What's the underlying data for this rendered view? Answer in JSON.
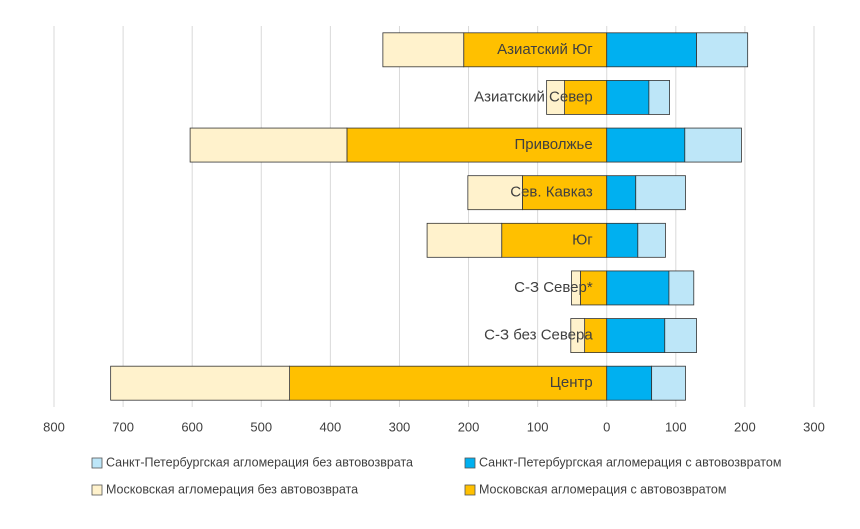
{
  "chart_data": {
    "type": "diverging_stacked_bar",
    "categories": [
      "Азиатский Юг",
      "Азиатский Север",
      "Приволжье",
      "Сев. Кавказ",
      "Юг",
      "С-З Север*",
      "С-З без Севера",
      "Центр"
    ],
    "series": [
      {
        "name": "Санкт-Петербургская агломерация без автовозврата",
        "color": "#bde6f8",
        "values": [
          74,
          30,
          82,
          72,
          40,
          36,
          46,
          49
        ]
      },
      {
        "name": "Санкт-Петербургская агломерация с автовозвратом",
        "color": "#00b0f0",
        "values": [
          130,
          61,
          113,
          42,
          45,
          90,
          84,
          65
        ]
      },
      {
        "name": "Московская агломерация без автовозврата",
        "color": "#fff2cc",
        "values": [
          -117,
          -26,
          -227,
          -79,
          -108,
          -13,
          -20,
          -259
        ]
      },
      {
        "name": "Московская агломерация с автовозвратом",
        "color": "#ffc000",
        "values": [
          -207,
          -61,
          -376,
          -122,
          -152,
          -38,
          -32,
          -459
        ]
      }
    ],
    "xlim": [
      -800,
      300
    ],
    "xticks": [
      {
        "value": -800,
        "label": "800"
      },
      {
        "value": -700,
        "label": "700"
      },
      {
        "value": -600,
        "label": "600"
      },
      {
        "value": -500,
        "label": "500"
      },
      {
        "value": -400,
        "label": "400"
      },
      {
        "value": -300,
        "label": "300"
      },
      {
        "value": -200,
        "label": "200"
      },
      {
        "value": -100,
        "label": "100"
      },
      0,
      100,
      200,
      300
    ],
    "grid": true
  }
}
